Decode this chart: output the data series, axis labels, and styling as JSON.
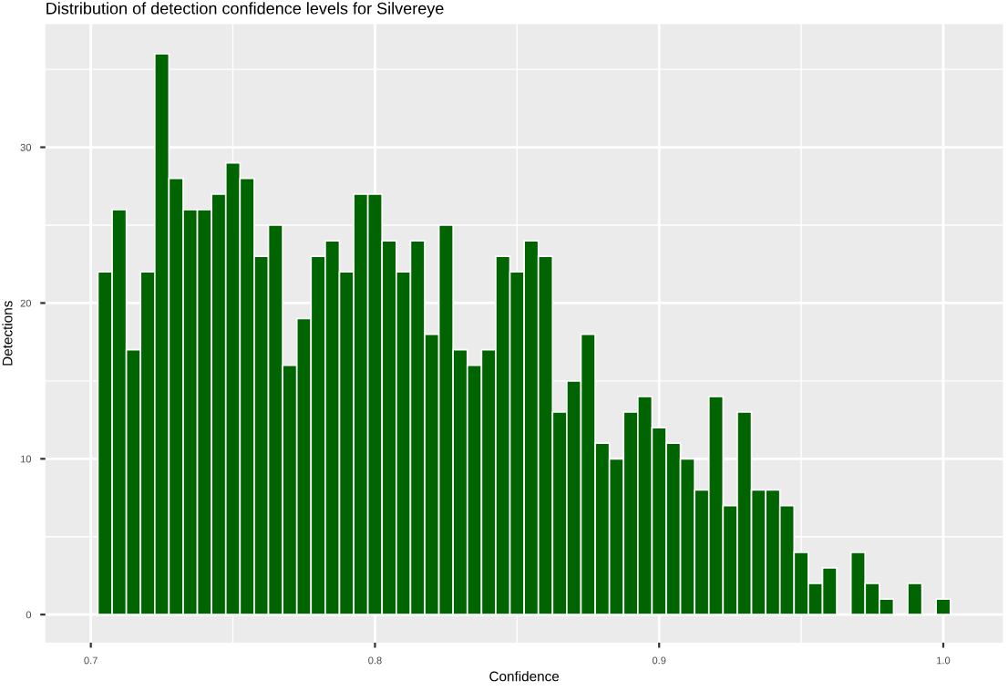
{
  "chart_data": {
    "type": "histogram",
    "title": "Distribution of detection confidence levels for Silvereye",
    "xlabel": "Confidence",
    "ylabel": "Detections",
    "bins": [
      0.7025,
      0.7075,
      0.7125,
      0.7175,
      0.7225,
      0.7275,
      0.7325,
      0.7375,
      0.7425,
      0.7475,
      0.7525,
      0.7575,
      0.7625,
      0.7675,
      0.7725,
      0.7775,
      0.7825,
      0.7875,
      0.7925,
      0.7975,
      0.8025,
      0.8075,
      0.8125,
      0.8175,
      0.8225,
      0.8275,
      0.8325,
      0.8375,
      0.8425,
      0.8475,
      0.8525,
      0.8575,
      0.8625,
      0.8675,
      0.8725,
      0.8775,
      0.8825,
      0.8875,
      0.8925,
      0.8975,
      0.9025,
      0.9075,
      0.9125,
      0.9175,
      0.9225,
      0.9275,
      0.9325,
      0.9375,
      0.9425,
      0.9475,
      0.9525,
      0.9575,
      0.9625,
      0.9675,
      0.9725,
      0.9775,
      0.9825,
      0.9875,
      0.9925,
      0.9975,
      1.0025
    ],
    "values": [
      22,
      26,
      17,
      22,
      36,
      28,
      26,
      26,
      27,
      29,
      28,
      23,
      25,
      16,
      19,
      23,
      24,
      22,
      27,
      27,
      24,
      22,
      24,
      18,
      25,
      17,
      16,
      17,
      23,
      22,
      24,
      23,
      13,
      15,
      18,
      11,
      10,
      13,
      14,
      12,
      11,
      10,
      8,
      14,
      7,
      13,
      8,
      8,
      7,
      4,
      2,
      3,
      0,
      4,
      2,
      1,
      0,
      2,
      0,
      1
    ],
    "color": "#006400",
    "xlim": [
      0.684,
      1.021
    ],
    "ylim": [
      -1.8,
      37.9
    ],
    "xticks": [
      0.7,
      0.8,
      0.9,
      {
        "value": 1.0,
        "label": "1.0"
      }
    ],
    "yticks": [
      0,
      10,
      20,
      30
    ],
    "grid": true
  }
}
